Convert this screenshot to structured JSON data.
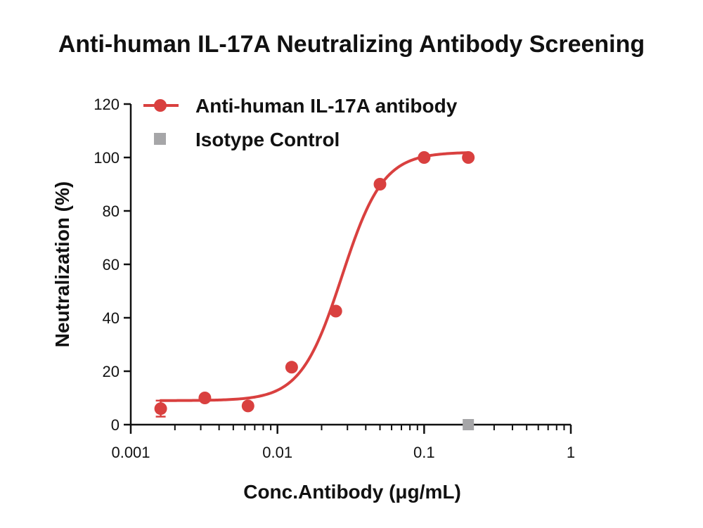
{
  "chart_data": {
    "type": "scatter",
    "title": "Anti-human IL-17A Neutralizing Antibody Screening",
    "xlabel": "Conc.Antibody (μg/mL)",
    "ylabel": "Neutralization (%)",
    "xscale": "log",
    "xlim": [
      0.001,
      1
    ],
    "ylim": [
      0,
      120
    ],
    "xticks": [
      0.001,
      0.01,
      0.1,
      1
    ],
    "xtick_labels": [
      "0.001",
      "0.01",
      "0.1",
      "1"
    ],
    "yticks": [
      0,
      20,
      40,
      60,
      80,
      100,
      120
    ],
    "ytick_labels": [
      "0",
      "20",
      "40",
      "60",
      "80",
      "100",
      "120"
    ],
    "grid": false,
    "legend_position": "top-left",
    "series": [
      {
        "name": "Anti-human IL-17A antibody",
        "color": "#d9403f",
        "marker": "circle",
        "fit": "sigmoidal",
        "x": [
          0.0016,
          0.0032,
          0.0063,
          0.0125,
          0.025,
          0.05,
          0.1,
          0.2
        ],
        "y": [
          6,
          10,
          7,
          21.5,
          42.5,
          90,
          100,
          100
        ]
      },
      {
        "name": "Isotype Control",
        "color": "#a6a6a8",
        "marker": "square",
        "x": [
          0.2
        ],
        "y": [
          0
        ]
      }
    ]
  }
}
